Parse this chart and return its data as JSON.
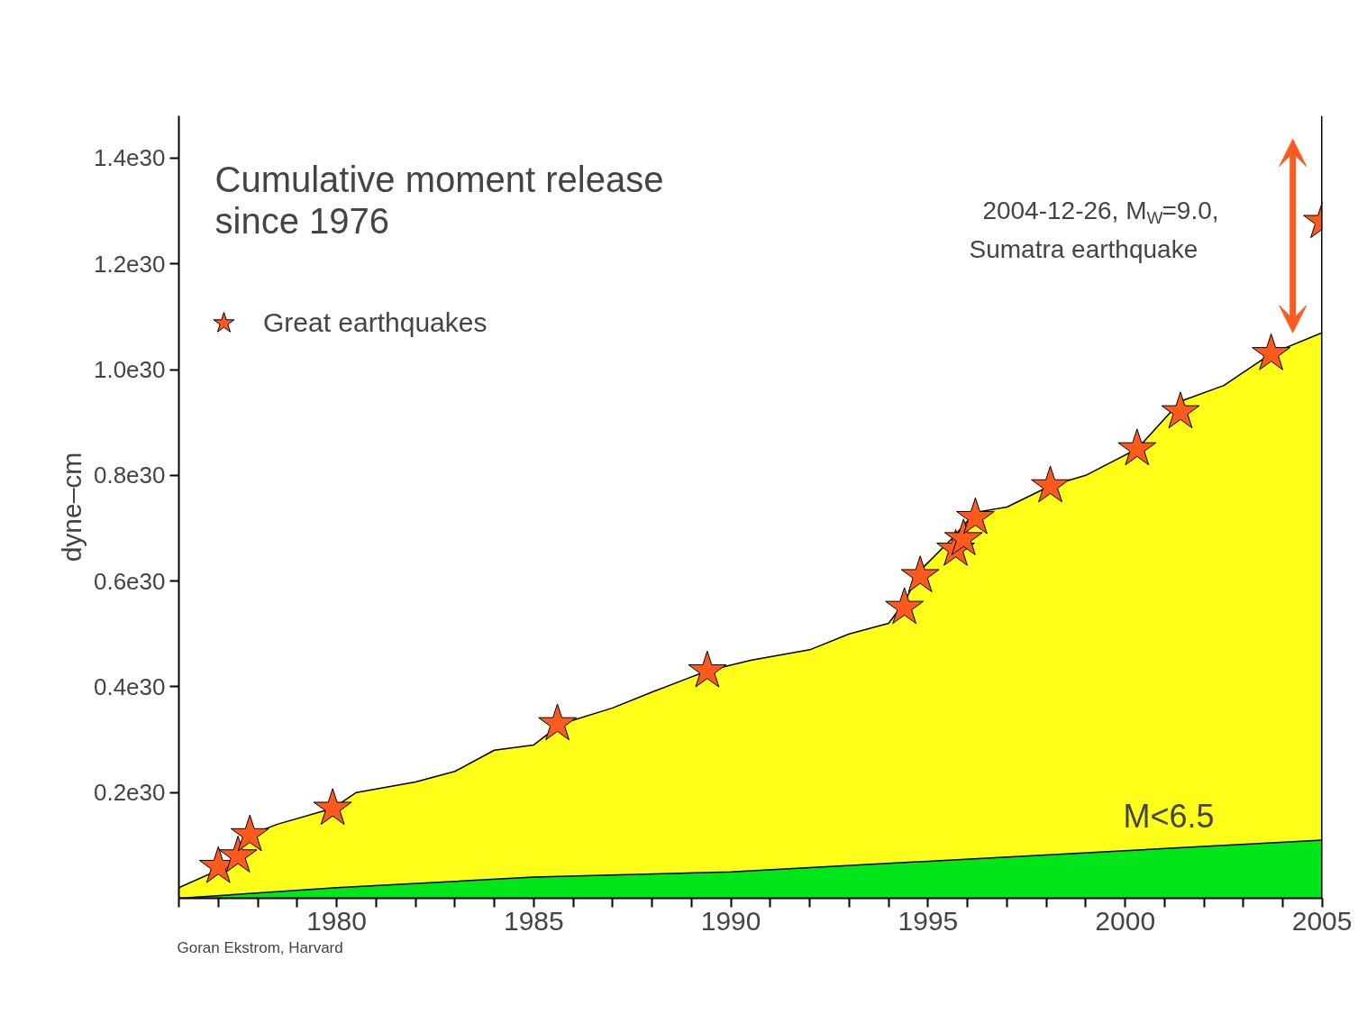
{
  "chart_data": {
    "type": "area",
    "title": "Cumulative moment release since 1976",
    "ylabel": "dyne–cm",
    "xlim": [
      1976,
      2005
    ],
    "ylim": [
      0,
      1.48e+30
    ],
    "xticks": [
      {
        "value": 1976,
        "label": null
      },
      {
        "value": 1977,
        "label": null
      },
      {
        "value": 1978,
        "label": null
      },
      {
        "value": 1979,
        "label": null
      },
      1980,
      {
        "value": 1981,
        "label": null
      },
      {
        "value": 1982,
        "label": null
      },
      {
        "value": 1983,
        "label": null
      },
      {
        "value": 1984,
        "label": null
      },
      1985,
      {
        "value": 1986,
        "label": null
      },
      {
        "value": 1987,
        "label": null
      },
      {
        "value": 1988,
        "label": null
      },
      {
        "value": 1989,
        "label": null
      },
      1990,
      {
        "value": 1991,
        "label": null
      },
      {
        "value": 1992,
        "label": null
      },
      {
        "value": 1993,
        "label": null
      },
      {
        "value": 1994,
        "label": null
      },
      1995,
      {
        "value": 1996,
        "label": null
      },
      {
        "value": 1997,
        "label": null
      },
      {
        "value": 1998,
        "label": null
      },
      {
        "value": 1999,
        "label": null
      },
      2000,
      {
        "value": 2001,
        "label": null
      },
      {
        "value": 2002,
        "label": null
      },
      {
        "value": 2003,
        "label": null
      },
      {
        "value": 2004,
        "label": null
      },
      2005
    ],
    "yticks": [
      {
        "value": 2e+29,
        "label": "0.2e30"
      },
      {
        "value": 4e+29,
        "label": "0.4e30"
      },
      {
        "value": 6e+29,
        "label": "0.6e30"
      },
      {
        "value": 8e+29,
        "label": "0.8e30"
      },
      {
        "value": 1e+30,
        "label": "1.0e30"
      },
      {
        "value": 1.2e+30,
        "label": "1.2e30"
      },
      {
        "value": 1.4e+30,
        "label": "1.4e30"
      }
    ],
    "series": [
      {
        "color": "#ffff1a",
        "x": [
          1976,
          1977.2,
          1977.8,
          1978.5,
          1979.9,
          1980.5,
          1982,
          1983,
          1984,
          1985,
          1985.7,
          1987,
          1988,
          1989.4,
          1990.5,
          1992,
          1993,
          1994,
          1994.4,
          1994.8,
          1995.6,
          1996.2,
          1997,
          1998.1,
          1999,
          2000.3,
          2001.4,
          2002.5,
          2003.7,
          2005
        ],
        "values": [
          2e+28,
          6e+28,
          1.2e+29,
          1.4e+29,
          1.7e+29,
          2e+29,
          2.2e+29,
          2.4e+29,
          2.8e+29,
          2.9e+29,
          3.3e+29,
          3.6e+29,
          3.9e+29,
          4.3e+29,
          4.5e+29,
          4.7e+29,
          5e+29,
          5.2e+29,
          5.6e+29,
          6.2e+29,
          6.8e+29,
          7.3e+29,
          7.4e+29,
          7.8e+29,
          8e+29,
          8.5e+29,
          9.4e+29,
          9.7e+29,
          1.03e+30,
          1.07e+30
        ]
      },
      {
        "name": "M<6.5",
        "color": "#00e61a",
        "x": [
          1976,
          1980,
          1985,
          1990,
          1995,
          2000,
          2005
        ],
        "values": [
          0,
          2e+28,
          4e+28,
          5e+28,
          7e+28,
          9e+28,
          1.1e+29
        ]
      },
      {
        "type": "scatter",
        "marker": "star",
        "name": "Great earthquakes",
        "color": "#ff5a1e",
        "x": [
          1977.0,
          1977.5,
          1977.8,
          1979.9,
          1985.6,
          1989.4,
          1994.4,
          1994.8,
          1995.7,
          1995.9,
          1996.2,
          1998.1,
          2000.3,
          2001.4,
          2003.7,
          2005.0
        ],
        "values": [
          6e+28,
          8e+28,
          1.2e+29,
          1.7e+29,
          3.3e+29,
          4.3e+29,
          5.5e+29,
          6.1e+29,
          6.6e+29,
          6.8e+29,
          7.2e+29,
          7.8e+29,
          8.5e+29,
          9.2e+29,
          1.03e+30,
          1.28e+30
        ]
      }
    ],
    "legend": "top left",
    "ref_lines": [
      {
        "axis": "x",
        "value": 2005,
        "color": "#000000"
      }
    ],
    "annotations": [
      "2004-12-26, M$_{W}$=9.0,\nSumatra earthquake",
      "Goran Ekstrom, Harvard"
    ]
  }
}
